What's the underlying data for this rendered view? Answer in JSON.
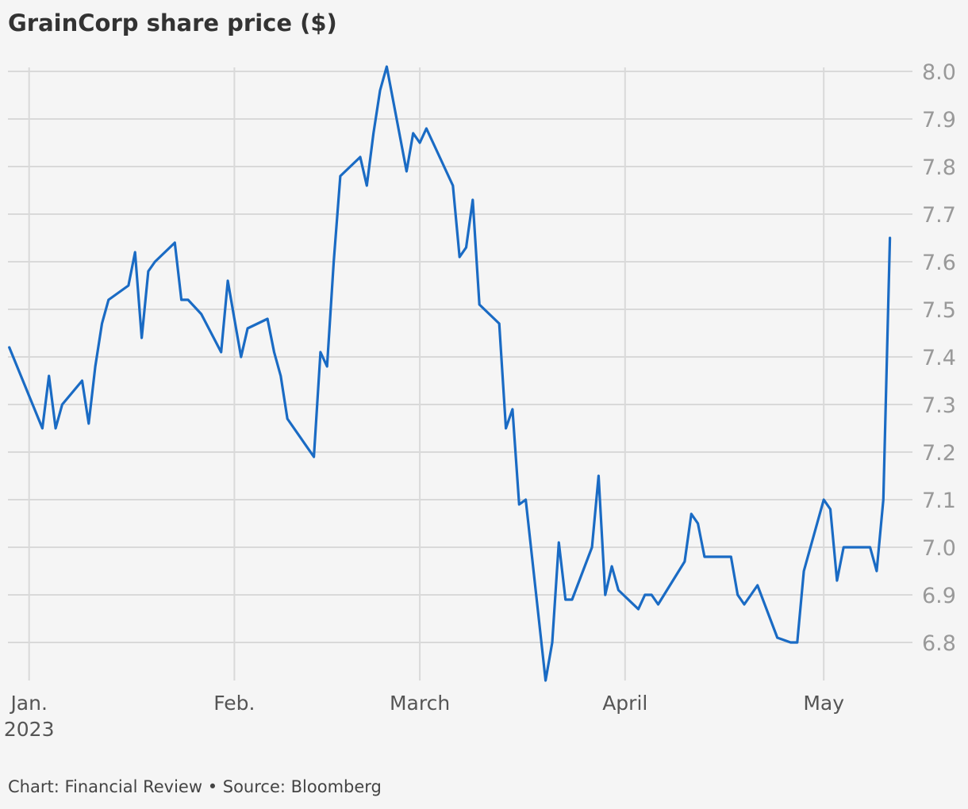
{
  "chart_data": {
    "type": "line",
    "title": "GrainCorp share price ($)",
    "source": "Chart: Financial Review • Source: Bloomberg",
    "xlabel": "",
    "ylabel": "",
    "ylim": [
      6.72,
      8.02
    ],
    "yticks": [
      6.8,
      6.9,
      7.0,
      7.1,
      7.2,
      7.3,
      7.4,
      7.5,
      7.6,
      7.7,
      7.8,
      7.9,
      8.0
    ],
    "ytick_labels": [
      "6.8",
      "6.9",
      "7.0",
      "7.1",
      "7.2",
      "7.3",
      "7.4",
      "7.5",
      "7.6",
      "7.7",
      "7.8",
      "7.9",
      "8.0"
    ],
    "y_axis_side": "right",
    "grid": true,
    "xlim": [
      "2022-12-30",
      "2023-05-15"
    ],
    "xticks": [
      {
        "date": "2023-01-01",
        "label": "Jan.",
        "sublabel": "2023"
      },
      {
        "date": "2023-02-01",
        "label": "Feb.",
        "sublabel": ""
      },
      {
        "date": "2023-03-01",
        "label": "March",
        "sublabel": ""
      },
      {
        "date": "2023-04-01",
        "label": "April",
        "sublabel": ""
      },
      {
        "date": "2023-05-01",
        "label": "May",
        "sublabel": ""
      }
    ],
    "series": [
      {
        "color": "#1a6bc4",
        "x": [
          "2022-12-29",
          "2023-01-03",
          "2023-01-04",
          "2023-01-05",
          "2023-01-06",
          "2023-01-09",
          "2023-01-10",
          "2023-01-11",
          "2023-01-12",
          "2023-01-13",
          "2023-01-16",
          "2023-01-17",
          "2023-01-18",
          "2023-01-19",
          "2023-01-20",
          "2023-01-23",
          "2023-01-24",
          "2023-01-25",
          "2023-01-27",
          "2023-01-30",
          "2023-01-31",
          "2023-02-01",
          "2023-02-02",
          "2023-02-03",
          "2023-02-06",
          "2023-02-07",
          "2023-02-08",
          "2023-02-09",
          "2023-02-13",
          "2023-02-14",
          "2023-02-15",
          "2023-02-16",
          "2023-02-17",
          "2023-02-20",
          "2023-02-21",
          "2023-02-22",
          "2023-02-23",
          "2023-02-24",
          "2023-02-27",
          "2023-02-28",
          "2023-03-01",
          "2023-03-02",
          "2023-03-03",
          "2023-03-06",
          "2023-03-07",
          "2023-03-08",
          "2023-03-09",
          "2023-03-10",
          "2023-03-13",
          "2023-03-14",
          "2023-03-15",
          "2023-03-16",
          "2023-03-17",
          "2023-03-20",
          "2023-03-21",
          "2023-03-22",
          "2023-03-23",
          "2023-03-24",
          "2023-03-27",
          "2023-03-28",
          "2023-03-29",
          "2023-03-30",
          "2023-03-31",
          "2023-04-03",
          "2023-04-04",
          "2023-04-05",
          "2023-04-06",
          "2023-04-10",
          "2023-04-11",
          "2023-04-12",
          "2023-04-13",
          "2023-04-14",
          "2023-04-17",
          "2023-04-18",
          "2023-04-19",
          "2023-04-20",
          "2023-04-21",
          "2023-04-24",
          "2023-04-26",
          "2023-04-27",
          "2023-04-28",
          "2023-05-01",
          "2023-05-02",
          "2023-05-03",
          "2023-05-04",
          "2023-05-05",
          "2023-05-08",
          "2023-05-09",
          "2023-05-10",
          "2023-05-11"
        ],
        "values": [
          7.42,
          7.25,
          7.36,
          7.25,
          7.3,
          7.35,
          7.26,
          7.38,
          7.47,
          7.52,
          7.55,
          7.62,
          7.44,
          7.58,
          7.6,
          7.64,
          7.52,
          7.52,
          7.49,
          7.41,
          7.56,
          7.48,
          7.4,
          7.46,
          7.48,
          7.41,
          7.36,
          7.27,
          7.19,
          7.41,
          7.38,
          7.6,
          7.78,
          7.82,
          7.76,
          7.87,
          7.96,
          8.01,
          7.79,
          7.87,
          7.85,
          7.88,
          7.85,
          7.76,
          7.61,
          7.63,
          7.73,
          7.51,
          7.47,
          7.25,
          7.29,
          7.09,
          7.1,
          6.72,
          6.8,
          7.01,
          6.89,
          6.89,
          7.0,
          7.15,
          6.9,
          6.96,
          6.91,
          6.87,
          6.9,
          6.9,
          6.88,
          6.97,
          7.07,
          7.05,
          6.98,
          6.98,
          6.98,
          6.9,
          6.88,
          6.9,
          6.92,
          6.81,
          6.8,
          6.8,
          6.95,
          7.1,
          7.08,
          6.93,
          7.0,
          7.0,
          7.0,
          6.95,
          7.1,
          7.65
        ]
      }
    ]
  }
}
